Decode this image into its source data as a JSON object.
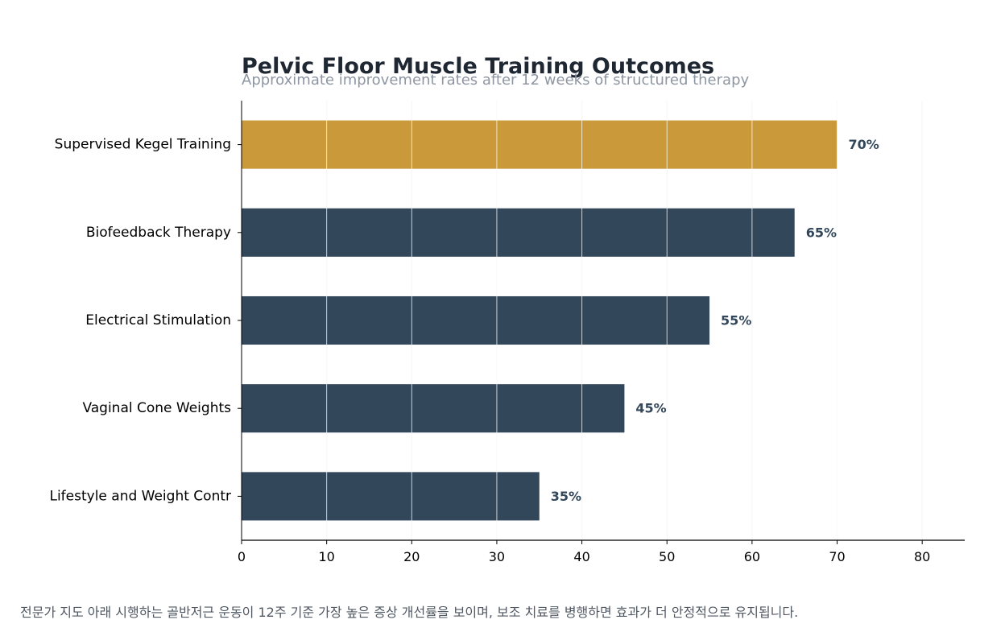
{
  "chart_data": {
    "type": "bar",
    "orientation": "horizontal",
    "title": "Pelvic Floor Muscle Training Outcomes",
    "subtitle": "Approximate improvement rates after 12 weeks of structured therapy",
    "categories": [
      "Supervised Kegel Training",
      "Biofeedback Therapy",
      "Electrical Stimulation",
      "Vaginal Cone Weights",
      "Lifestyle and Weight Contr"
    ],
    "values": [
      70,
      65,
      55,
      45,
      35
    ],
    "value_labels": [
      "70%",
      "65%",
      "55%",
      "45%",
      "35%"
    ],
    "xlim": [
      0,
      85
    ],
    "xticks": [
      0,
      10,
      20,
      30,
      40,
      50,
      60,
      70,
      80
    ],
    "grid": "vertical",
    "legend": "none",
    "colors": {
      "highlight": "#c9993a",
      "bar": "#33475b",
      "label": "#33475b",
      "grid": "#e8e8e8",
      "axis": "#000000"
    },
    "highlight_index": 0
  },
  "footnote": "전문가 지도 아래 시행하는 골반저근 운동이 12주 기준 가장 높은 증상 개선률을 보이며, 보조 치료를 병행하면 효과가 더 안정적으로 유지됩니다."
}
